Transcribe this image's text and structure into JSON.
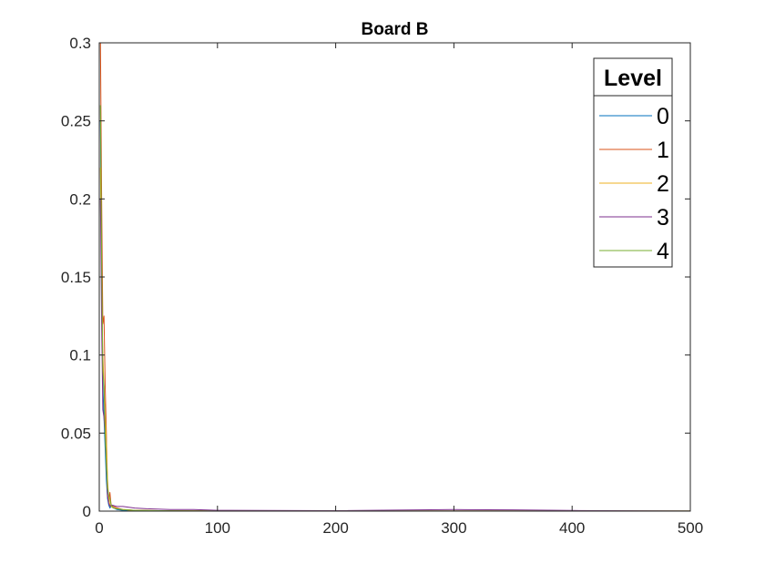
{
  "chart_data": {
    "type": "line",
    "title": "Board B",
    "xlabel": "",
    "ylabel": "",
    "xlim": [
      0,
      500
    ],
    "ylim": [
      0,
      0.3
    ],
    "x_ticks": [
      0,
      100,
      200,
      300,
      400,
      500
    ],
    "x_tick_labels": [
      "0",
      "100",
      "200",
      "300",
      "400",
      "500"
    ],
    "y_ticks": [
      0,
      0.05,
      0.1,
      0.15,
      0.2,
      0.25,
      0.3
    ],
    "y_tick_labels": [
      "0",
      "0.05",
      "0.1",
      "0.15",
      "0.2",
      "0.25",
      "0.3"
    ],
    "grid": false,
    "legend": {
      "title": "Level",
      "placement": "top-right"
    },
    "series": [
      {
        "name": "0",
        "color": "#0072bd",
        "x": [
          1,
          2,
          3,
          4,
          5,
          6,
          7,
          8,
          9,
          10,
          12,
          15,
          20,
          30,
          50,
          100,
          500
        ],
        "y": [
          0.25,
          0.15,
          0.08,
          0.06,
          0.04,
          0.02,
          0.008,
          0.004,
          0.002,
          0.003,
          0.002,
          0.001,
          0.0005,
          0.0003,
          0.0002,
          0.0001,
          0.0001
        ]
      },
      {
        "name": "1",
        "color": "#d95319",
        "x": [
          1,
          2,
          3,
          4,
          5,
          6,
          7,
          8,
          9,
          10,
          12,
          15,
          20,
          30,
          50,
          100,
          500
        ],
        "y": [
          0.3,
          0.2,
          0.12,
          0.125,
          0.08,
          0.05,
          0.01,
          0.006,
          0.012,
          0.004,
          0.003,
          0.002,
          0.001,
          0.0005,
          0.0003,
          0.0001,
          0.0001
        ]
      },
      {
        "name": "2",
        "color": "#edb120",
        "x": [
          1,
          2,
          3,
          4,
          5,
          6,
          7,
          8,
          9,
          10,
          12,
          15,
          20,
          30,
          50,
          100,
          500
        ],
        "y": [
          0.22,
          0.14,
          0.1,
          0.08,
          0.06,
          0.045,
          0.02,
          0.008,
          0.004,
          0.003,
          0.002,
          0.0015,
          0.001,
          0.0005,
          0.0003,
          0.0001,
          0.0001
        ]
      },
      {
        "name": "3",
        "color": "#7e2f8e",
        "x": [
          1,
          2,
          3,
          4,
          5,
          6,
          7,
          8,
          9,
          10,
          15,
          20,
          30,
          40,
          60,
          80,
          100,
          200,
          300,
          350,
          400,
          450,
          500
        ],
        "y": [
          0.2,
          0.12,
          0.065,
          0.06,
          0.05,
          0.03,
          0.01,
          0.005,
          0.003,
          0.004,
          0.003,
          0.003,
          0.002,
          0.0015,
          0.001,
          0.001,
          0.0005,
          0.0003,
          0.001,
          0.0008,
          0.0004,
          0.0002,
          0.0001
        ]
      },
      {
        "name": "4",
        "color": "#77ac30",
        "x": [
          1,
          2,
          3,
          4,
          5,
          6,
          7,
          8,
          9,
          10,
          12,
          15,
          20,
          30,
          50,
          100,
          500
        ],
        "y": [
          0.26,
          0.16,
          0.09,
          0.08,
          0.05,
          0.03,
          0.015,
          0.01,
          0.008,
          0.004,
          0.002,
          0.0015,
          0.001,
          0.0005,
          0.0003,
          0.0001,
          0.0001
        ]
      }
    ]
  }
}
